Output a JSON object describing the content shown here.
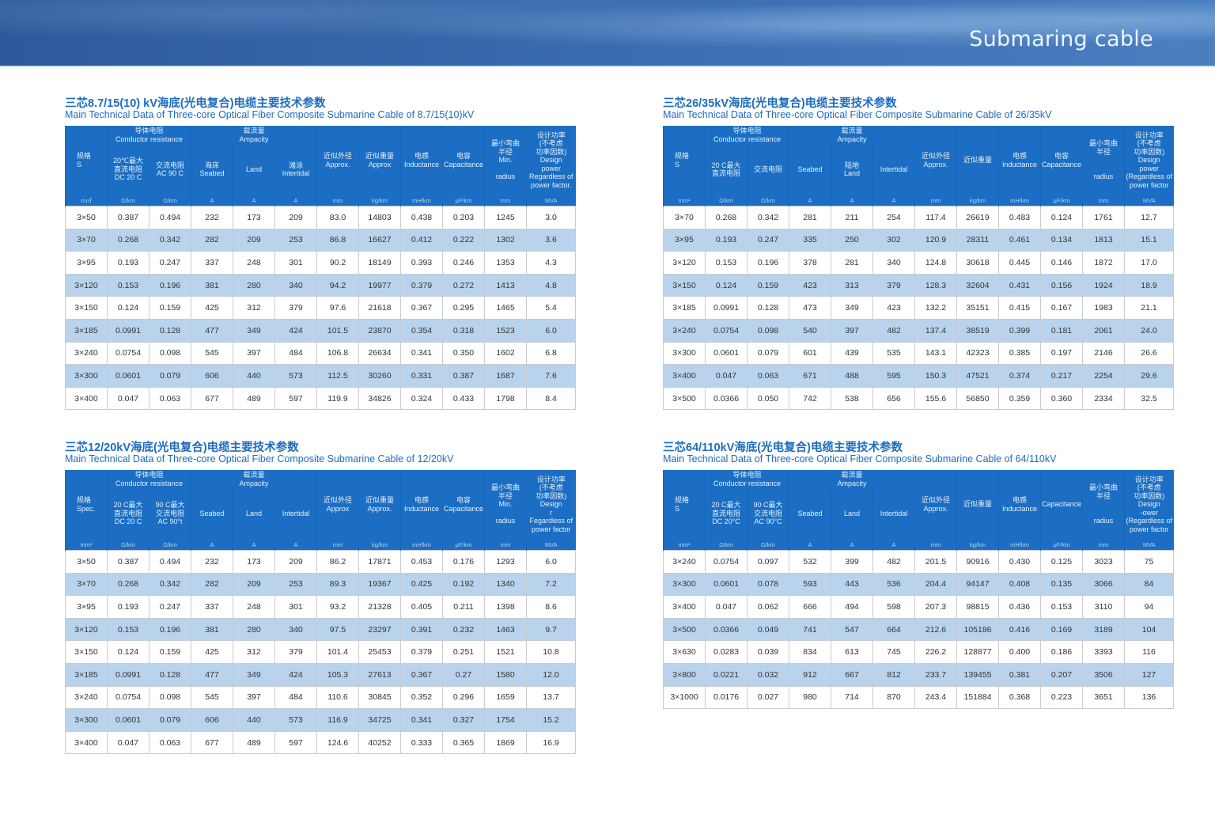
{
  "banner": {
    "title": "Submaring cable"
  },
  "colors": {
    "header_blue": "#1b6ec3",
    "alt_row": "#bad3ec",
    "title_blue": "#1d6cbf"
  },
  "tables": [
    {
      "title_cn": "三芯8.7/15(10) kV海底(光电复合)电缆主要技术参数",
      "title_en": "Main Technical Data of Three-core Optical Fiber Composite Submarine Cable of 8.7/15(10)kV",
      "header": {
        "spec": "规格\nS",
        "cond": "导体电阻\nConductor resistance",
        "amp": "载流量\nAmpacity",
        "dc": "20℃最大\n直流电阻\nDC 20 C",
        "ac": "交流电阻\nAC 90 C",
        "seabed": "海床\nSeabed",
        "land": "Land",
        "intertidal": "滩涂\nIntertidal",
        "od": "近似外径\nApprox.",
        "wt": "近似重量\nApprox",
        "ind": "电感\nInductance",
        "cap": "电容\nCapacitance",
        "rad": "最小弯曲\n半径\nMin.\n\nradius",
        "power": "设计功率\n(不考虑\n功率因数)\nDesign\npower\nRegardless of\npower factor."
      },
      "units": [
        "m㎡",
        "Ω/km",
        "Ω/km",
        "A",
        "A",
        "A",
        "mm",
        "kg/km",
        "mH/km",
        "μF/km",
        "mm",
        "MVA"
      ],
      "rows": [
        [
          "3×50",
          "0.387",
          "0.494",
          "232",
          "173",
          "209",
          "83.0",
          "14803",
          "0.438",
          "0.203",
          "1245",
          "3.0"
        ],
        [
          "3×70",
          "0.268",
          "0.342",
          "282",
          "209",
          "253",
          "86.8",
          "16627",
          "0.412",
          "0.222",
          "1302",
          "3.6"
        ],
        [
          "3×95",
          "0.193",
          "0.247",
          "337",
          "248",
          "301",
          "90.2",
          "18149",
          "0.393",
          "0.246",
          "1353",
          "4.3"
        ],
        [
          "3×120",
          "0.153",
          "0.196",
          "381",
          "280",
          "340",
          "94.2",
          "19977",
          "0.379",
          "0.272",
          "1413",
          "4.8"
        ],
        [
          "3×150",
          "0.124",
          "0.159",
          "425",
          "312",
          "379",
          "97.6",
          "21618",
          "0.367",
          "0.295",
          "1465",
          "5.4"
        ],
        [
          "3×185",
          "0.0991",
          "0.128",
          "477",
          "349",
          "424",
          "101.5",
          "23870",
          "0.354",
          "0.318",
          "1523",
          "6.0"
        ],
        [
          "3×240",
          "0.0754",
          "0.098",
          "545",
          "397",
          "484",
          "106.8",
          "26634",
          "0.341",
          "0.350",
          "1602",
          "6.8"
        ],
        [
          "3×300",
          "0.0601",
          "0.079",
          "606",
          "440",
          "573",
          "112.5",
          "30260",
          "0.331",
          "0.387",
          "1687",
          "7.6"
        ],
        [
          "3×400",
          "0.047",
          "0.063",
          "677",
          "489",
          "597",
          "119.9",
          "34826",
          "0.324",
          "0.433",
          "1798",
          "8.4"
        ]
      ]
    },
    {
      "title_cn": "三芯26/35kV海底(光电复合)电缆主要技术参数",
      "title_en": "Main Technical Data of Three-core Optical Fiber Composite Submarine Cable of 26/35kV",
      "header": {
        "spec": "规格\nS",
        "cond": "导体电阻\nConductor resistance",
        "amp": "载流量\nAmpacity",
        "dc": "20 C最大\n直流电阻",
        "ac": "交流电阻",
        "seabed": "Seabed",
        "land": "陆地\nLand",
        "intertidal": "Intertidal",
        "od": "近似外径\nApprox.",
        "wt": "近似重量",
        "ind": "电感\nInductance",
        "cap": "电容\nCapacitance",
        "rad": "最小弯曲\n半径\n\n\nradius",
        "power": "设计功率\n(不考虑\n功率因数)\nDesign\npower\n(Regardless of\npower factor"
      },
      "units": [
        "mm²",
        "Ω/km",
        "Ω/km",
        "A",
        "A",
        "A",
        "mm",
        "kg/km",
        "mH/km",
        "μF/km",
        "mm",
        "MVA"
      ],
      "rows": [
        [
          "3×70",
          "0.268",
          "0.342",
          "281",
          "211",
          "254",
          "117.4",
          "26619",
          "0.483",
          "0.124",
          "1761",
          "12.7"
        ],
        [
          "3×95",
          "0.193",
          "0.247",
          "335",
          "250",
          "302",
          "120.9",
          "28311",
          "0.461",
          "0.134",
          "1813",
          "15.1"
        ],
        [
          "3×120",
          "0.153",
          "0.196",
          "378",
          "281",
          "340",
          "124.8",
          "30618",
          "0.445",
          "0.146",
          "1872",
          "17.0"
        ],
        [
          "3×150",
          "0.124",
          "0.159",
          "423",
          "313",
          "379",
          "128.3",
          "32604",
          "0.431",
          "0.156",
          "1924",
          "18.9"
        ],
        [
          "3×185",
          "0.0991",
          "0.128",
          "473",
          "349",
          "423",
          "132.2",
          "35151",
          "0.415",
          "0.167",
          "1983",
          "21.1"
        ],
        [
          "3×240",
          "0.0754",
          "0.098",
          "540",
          "397",
          "482",
          "137.4",
          "38519",
          "0.399",
          "0.181",
          "2061",
          "24.0"
        ],
        [
          "3×300",
          "0.0601",
          "0.079",
          "601",
          "439",
          "535",
          "143.1",
          "42323",
          "0.385",
          "0.197",
          "2146",
          "26.6"
        ],
        [
          "3×400",
          "0.047",
          "0.063",
          "671",
          "488",
          "595",
          "150.3",
          "47521",
          "0.374",
          "0.217",
          "2254",
          "29.6"
        ],
        [
          "3×500",
          "0.0366",
          "0.050",
          "742",
          "538",
          "656",
          "155.6",
          "56850",
          "0.359",
          "0.360",
          "2334",
          "32.5"
        ]
      ]
    },
    {
      "title_cn": "三芯12/20kV海底(光电复合)电缆主要技术参数",
      "title_en": "Main Technical Data of Three-core Optical Fiber Composite Submarine Cable of 12/20kV",
      "header": {
        "spec": "规格\nSpec.",
        "cond": "导体电阻\nConductor resistance",
        "amp": "载流量\nAmpacity",
        "dc": "20 C最大\n直流电阻\nDC 20 C",
        "ac": "90 C最大\n交流电阻\nAC 90°t",
        "seabed": "Seabed",
        "land": "Land",
        "intertidal": "Intertidal",
        "od": "近似外径\nApprox",
        "wt": "近似重量\nApprox.",
        "ind": "电感\nInductance",
        "cap": "电容\nCapacitance",
        "rad": "最小弯曲\n半径\nMin.\n\nradius",
        "power": "设计功率\n(不考虑\n功率因数)\nDesign\nr\nFegardless of\npower factor"
      },
      "units": [
        "mm²",
        "Ω/km",
        "Ω/km",
        "A",
        "A",
        "A",
        "mm",
        "kg/km",
        "mH/km",
        "μF/km",
        "mm",
        "MVA"
      ],
      "rows": [
        [
          "3×50",
          "0.387",
          "0.494",
          "232",
          "173",
          "209",
          "86.2",
          "17871",
          "0.453",
          "0.176",
          "1293",
          "6.0"
        ],
        [
          "3×70",
          "0.268",
          "0.342",
          "282",
          "209",
          "253",
          "89.3",
          "19367",
          "0.425",
          "0.192",
          "1340",
          "7.2"
        ],
        [
          "3×95",
          "0.193",
          "0.247",
          "337",
          "248",
          "301",
          "93.2",
          "21328",
          "0.405",
          "0.211",
          "1398",
          "8.6"
        ],
        [
          "3×120",
          "0.153",
          "0.196",
          "381",
          "280",
          "340",
          "97.5",
          "23297",
          "0.391",
          "0.232",
          "1463",
          "9.7"
        ],
        [
          "3×150",
          "0.124",
          "0.159",
          "425",
          "312",
          "379",
          "101.4",
          "25453",
          "0.379",
          "0.251",
          "1521",
          "10.8"
        ],
        [
          "3×185",
          "0.0991",
          "0.128",
          "477",
          "349",
          "424",
          "105.3",
          "27613",
          "0.367",
          "0.27",
          "1580",
          "12.0"
        ],
        [
          "3×240",
          "0.0754",
          "0.098",
          "545",
          "397",
          "484",
          "110.6",
          "30845",
          "0.352",
          "0.296",
          "1659",
          "13.7"
        ],
        [
          "3×300",
          "0.0601",
          "0.079",
          "606",
          "440",
          "573",
          "116.9",
          "34725",
          "0.341",
          "0.327",
          "1754",
          "15.2"
        ],
        [
          "3×400",
          "0.047",
          "0.063",
          "677",
          "489",
          "597",
          "124.6",
          "40252",
          "0.333",
          "0.365",
          "1869",
          "16.9"
        ]
      ]
    },
    {
      "title_cn": "三芯64/110kV海底(光电复合)电缆主要技术参数",
      "title_en": "Main Technical Data of Three-core Optical Fiber Composite Submarine Cable of 64/110kV",
      "header": {
        "spec": "规格\nS",
        "cond": "导体电阻\nConductor resistance",
        "amp": "载流量\nAmpacity",
        "dc": "20 C最大\n直流电阻\nDC 20°C",
        "ac": "90 C最大\n交流电阻\nAC 90°C",
        "seabed": "Seabed",
        "land": "Land",
        "intertidal": "Intertidal",
        "od": "近似外径\nApprox.",
        "wt": "近似重量",
        "ind": "电感\nInductance",
        "cap": "Capacitance",
        "rad": "最小弯曲\n半径\n\n\nradius",
        "power": "设计功率\n(不考虑\n功率因数)\nDesign\n-ower\n(Regardless of\npower factor"
      },
      "units": [
        "mm²",
        "Ω/km",
        "Ω/km",
        "A",
        "A",
        "A",
        "mm",
        "kg/km",
        "mH/km",
        "μF/km",
        "mm",
        "MVA"
      ],
      "rows": [
        [
          "3×240",
          "0.0754",
          "0.097",
          "532",
          "399",
          "482",
          "201.5",
          "90916",
          "0.430",
          "0.125",
          "3023",
          "75"
        ],
        [
          "3×300",
          "0.0601",
          "0.078",
          "593",
          "443",
          "536",
          "204.4",
          "94147",
          "0.408",
          "0.135",
          "3066",
          "84"
        ],
        [
          "3×400",
          "0.047",
          "0.062",
          "666",
          "494",
          "598",
          "207.3",
          "98815",
          "0.436",
          "0.153",
          "3110",
          "94"
        ],
        [
          "3×500",
          "0.0366",
          "0.049",
          "741",
          "547",
          "664",
          "212.6",
          "105186",
          "0.416",
          "0.169",
          "3189",
          "104"
        ],
        [
          "3×630",
          "0.0283",
          "0.039",
          "834",
          "613",
          "745",
          "226.2",
          "128877",
          "0.400",
          "0.186",
          "3393",
          "116"
        ],
        [
          "3×800",
          "0.0221",
          "0.032",
          "912",
          "667",
          "812",
          "233.7",
          "139455",
          "0.381",
          "0.207",
          "3506",
          "127"
        ],
        [
          "3×1000",
          "0.0176",
          "0.027",
          "980",
          "714",
          "870",
          "243.4",
          "151884",
          "0.368",
          "0.223",
          "3651",
          "136"
        ]
      ]
    }
  ]
}
